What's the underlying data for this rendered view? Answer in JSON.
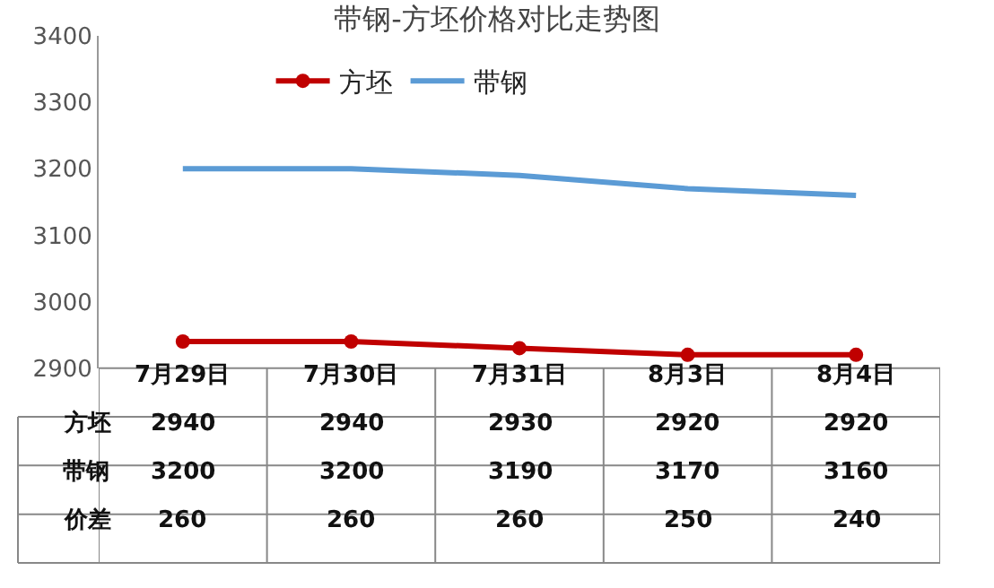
{
  "chart_data": {
    "type": "line",
    "title": "带钢-方坯价格对比走势图",
    "categories": [
      "7月29日",
      "7月30日",
      "7月31日",
      "8月3日",
      "8月4日"
    ],
    "series": [
      {
        "name": "方坯",
        "color": "#c00000",
        "values": [
          2940,
          2940,
          2930,
          2920,
          2920
        ],
        "marker": "circle"
      },
      {
        "name": "带钢",
        "color": "#5b9bd5",
        "values": [
          3200,
          3200,
          3190,
          3170,
          3160
        ],
        "marker": "none"
      }
    ],
    "annotations": [
      "价差",
      "260",
      "260",
      "260",
      "250",
      "240"
    ],
    "ylim": [
      2900,
      3400
    ],
    "yticks": [
      2900,
      3000,
      3100,
      3200,
      3300,
      3400
    ],
    "grid": false,
    "legend": "top",
    "data_labels": true,
    "line_style": "solid"
  }
}
